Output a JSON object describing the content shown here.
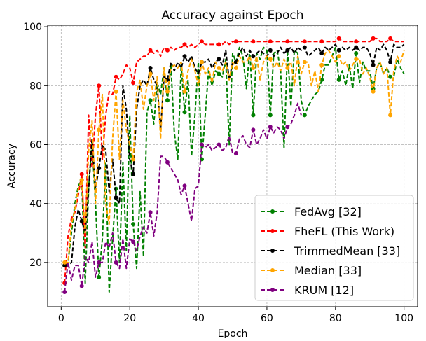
{
  "chart_data": {
    "type": "line",
    "title": "Accuracy against Epoch",
    "xlabel": "Epoch",
    "ylabel": "Accuracy",
    "xlim": [
      -3.95,
      103.95
    ],
    "ylim": [
      5,
      100.5
    ],
    "xticks": [
      0,
      20,
      40,
      60,
      80,
      100
    ],
    "yticks": [
      20,
      40,
      60,
      80,
      100
    ],
    "grid": true,
    "legend_position": "lower-right",
    "series": [
      {
        "name": "FedAvg [32]",
        "color": "#008000",
        "x": [
          1,
          2,
          3,
          4,
          5,
          6,
          7,
          8,
          9,
          10,
          11,
          12,
          13,
          14,
          15,
          16,
          17,
          18,
          19,
          20,
          21,
          22,
          23,
          24,
          25,
          26,
          27,
          28,
          29,
          30,
          31,
          32,
          33,
          34,
          35,
          36,
          37,
          38,
          39,
          40,
          41,
          42,
          43,
          44,
          45,
          46,
          47,
          48,
          49,
          50,
          51,
          52,
          53,
          54,
          55,
          56,
          57,
          58,
          59,
          60,
          61,
          62,
          63,
          64,
          65,
          66,
          67,
          68,
          69,
          70,
          71,
          72,
          73,
          74,
          75,
          76,
          77,
          78,
          79,
          80,
          81,
          82,
          83,
          84,
          85,
          86,
          87,
          88,
          89,
          90,
          91,
          92,
          93,
          94,
          95,
          96,
          97,
          98,
          99,
          100
        ],
        "y": [
          19,
          20,
          30,
          40,
          46,
          48,
          13,
          45,
          61,
          40,
          15,
          28,
          54,
          10,
          28,
          45,
          20,
          54,
          24,
          70,
          33,
          18,
          44,
          22,
          71,
          75,
          67,
          81,
          77,
          86,
          75,
          87,
          64,
          55,
          87,
          71,
          82,
          56,
          70,
          88,
          55,
          70,
          85,
          80,
          85,
          84,
          83,
          89,
          60,
          91,
          88,
          93,
          90,
          79,
          92,
          70,
          91,
          89,
          93,
          92,
          70,
          91,
          92,
          85,
          59,
          92,
          73,
          92,
          91,
          75,
          70,
          73,
          75,
          77,
          78,
          82,
          87,
          87,
          90,
          93,
          82,
          85,
          80,
          87,
          79,
          91,
          81,
          88,
          85,
          85,
          79,
          86,
          88,
          84,
          86,
          83,
          83,
          89,
          86,
          84
        ]
      },
      {
        "name": "FheFL (This Work)",
        "color": "#ff0000",
        "x": [
          1,
          2,
          3,
          4,
          5,
          6,
          7,
          8,
          9,
          10,
          11,
          12,
          13,
          14,
          15,
          16,
          17,
          18,
          19,
          20,
          21,
          22,
          23,
          24,
          25,
          26,
          27,
          28,
          29,
          30,
          31,
          32,
          33,
          34,
          35,
          36,
          37,
          38,
          39,
          40,
          41,
          42,
          43,
          44,
          45,
          46,
          47,
          48,
          49,
          50,
          51,
          52,
          53,
          54,
          55,
          56,
          57,
          58,
          59,
          60,
          61,
          62,
          63,
          64,
          65,
          66,
          67,
          68,
          69,
          70,
          71,
          72,
          73,
          74,
          75,
          76,
          77,
          78,
          79,
          80,
          81,
          82,
          83,
          84,
          85,
          86,
          87,
          88,
          89,
          90,
          91,
          92,
          93,
          94,
          95,
          96,
          97,
          98,
          99,
          100
        ],
        "y": [
          13,
          29,
          35,
          37,
          43,
          50,
          25,
          70,
          52,
          70,
          80,
          55,
          70,
          78,
          77,
          83,
          82,
          84,
          87,
          86,
          81,
          88,
          89,
          90,
          90,
          92,
          91,
          92,
          90,
          93,
          92,
          93,
          92,
          93,
          93,
          94,
          93,
          94,
          93,
          94,
          95,
          94,
          94,
          94,
          94,
          94,
          94,
          95,
          94,
          95,
          95,
          95,
          95,
          95,
          95,
          95,
          95,
          95,
          95,
          95,
          95,
          95,
          95,
          95,
          95,
          95,
          95,
          95,
          95,
          95,
          95,
          95,
          95,
          95,
          95,
          95,
          95,
          95,
          95,
          95,
          96,
          95,
          95,
          95,
          95,
          95,
          95,
          95,
          95,
          95,
          96,
          96,
          95,
          95,
          95,
          96,
          95,
          95,
          95,
          95
        ]
      },
      {
        "name": "TrimmedMean [33]",
        "color": "#000000",
        "x": [
          1,
          2,
          3,
          4,
          5,
          6,
          7,
          8,
          9,
          10,
          11,
          12,
          13,
          14,
          15,
          16,
          17,
          18,
          19,
          20,
          21,
          22,
          23,
          24,
          25,
          26,
          27,
          28,
          29,
          30,
          31,
          32,
          33,
          34,
          35,
          36,
          37,
          38,
          39,
          40,
          41,
          42,
          43,
          44,
          45,
          46,
          47,
          48,
          49,
          50,
          51,
          52,
          53,
          54,
          55,
          56,
          57,
          58,
          59,
          60,
          61,
          62,
          63,
          64,
          65,
          66,
          67,
          68,
          69,
          70,
          71,
          72,
          73,
          74,
          75,
          76,
          77,
          78,
          79,
          80,
          81,
          82,
          83,
          84,
          85,
          86,
          87,
          88,
          89,
          90,
          91,
          92,
          93,
          94,
          95,
          96,
          97,
          98,
          99,
          100
        ],
        "y": [
          19,
          19,
          20,
          32,
          38,
          34,
          30,
          45,
          62,
          45,
          52,
          60,
          58,
          44,
          55,
          42,
          40,
          80,
          72,
          55,
          50,
          72,
          80,
          82,
          80,
          86,
          82,
          80,
          65,
          83,
          82,
          88,
          85,
          88,
          86,
          90,
          88,
          90,
          86,
          84,
          88,
          88,
          89,
          86,
          88,
          89,
          87,
          92,
          82,
          88,
          88,
          91,
          93,
          90,
          92,
          90,
          91,
          92,
          91,
          90,
          92,
          90,
          91,
          93,
          91,
          92,
          93,
          91,
          93,
          92,
          93,
          90,
          91,
          92,
          93,
          91,
          93,
          92,
          93,
          94,
          92,
          93,
          92,
          93,
          92,
          93,
          92,
          93,
          93,
          91,
          87,
          93,
          92,
          94,
          92,
          88,
          94,
          93,
          93,
          94
        ]
      },
      {
        "name": "Median [33]",
        "color": "#ffa500",
        "x": [
          1,
          2,
          3,
          4,
          5,
          6,
          7,
          8,
          9,
          10,
          11,
          12,
          13,
          14,
          15,
          16,
          17,
          18,
          19,
          20,
          21,
          22,
          23,
          24,
          25,
          26,
          27,
          28,
          29,
          30,
          31,
          32,
          33,
          34,
          35,
          36,
          37,
          38,
          39,
          40,
          41,
          42,
          43,
          44,
          45,
          46,
          47,
          48,
          49,
          50,
          51,
          52,
          53,
          54,
          55,
          56,
          57,
          58,
          59,
          60,
          61,
          62,
          63,
          64,
          65,
          66,
          67,
          68,
          69,
          70,
          71,
          72,
          73,
          74,
          75,
          76,
          77,
          78,
          79,
          80,
          81,
          82,
          83,
          84,
          85,
          86,
          87,
          88,
          89,
          90,
          91,
          92,
          93,
          94,
          95,
          96,
          97,
          98,
          99,
          100
        ],
        "y": [
          20,
          20,
          33,
          38,
          45,
          48,
          30,
          58,
          68,
          40,
          65,
          77,
          40,
          33,
          62,
          78,
          55,
          75,
          65,
          60,
          55,
          78,
          82,
          72,
          80,
          84,
          75,
          83,
          62,
          86,
          78,
          86,
          87,
          86,
          88,
          78,
          85,
          89,
          85,
          80,
          88,
          84,
          86,
          81,
          88,
          86,
          85,
          88,
          82,
          88,
          86,
          90,
          88,
          88,
          90,
          86,
          90,
          82,
          88,
          90,
          89,
          86,
          88,
          85,
          89,
          86,
          88,
          80,
          90,
          84,
          88,
          88,
          80,
          85,
          78,
          87,
          91,
          92,
          90,
          88,
          90,
          87,
          88,
          85,
          87,
          89,
          89,
          84,
          86,
          83,
          78,
          86,
          88,
          84,
          86,
          70,
          85,
          90,
          88,
          92
        ]
      },
      {
        "name": "KRUM [12]",
        "color": "#800080",
        "x": [
          1,
          2,
          3,
          4,
          5,
          6,
          7,
          8,
          9,
          10,
          11,
          12,
          13,
          14,
          15,
          16,
          17,
          18,
          19,
          20,
          21,
          22,
          23,
          24,
          25,
          26,
          27,
          28,
          29,
          30,
          31,
          32,
          33,
          34,
          35,
          36,
          37,
          38,
          39,
          40,
          41,
          42,
          43,
          44,
          45,
          46,
          47,
          48,
          49,
          50,
          51,
          52,
          53,
          54,
          55,
          56,
          57,
          58,
          59,
          60,
          61,
          62,
          63,
          64,
          65,
          66,
          67,
          68,
          69,
          70
        ],
        "y": [
          10,
          20,
          14,
          19,
          19,
          12,
          22,
          20,
          27,
          15,
          20,
          20,
          27,
          25,
          30,
          20,
          18,
          28,
          18,
          28,
          27,
          24,
          29,
          32,
          30,
          37,
          29,
          37,
          56,
          56,
          54,
          52,
          50,
          48,
          43,
          46,
          40,
          34,
          45,
          46,
          60,
          59,
          60,
          58,
          59,
          60,
          58,
          59,
          63,
          57,
          57,
          62,
          63,
          60,
          59,
          65,
          60,
          62,
          65,
          62,
          66,
          64,
          66,
          65,
          62,
          66,
          67,
          70,
          74,
          70
        ]
      }
    ]
  }
}
